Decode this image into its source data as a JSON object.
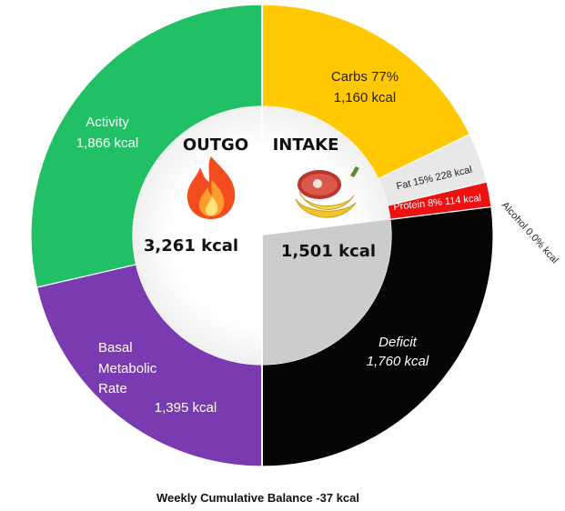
{
  "chart_data": {
    "type": "pie",
    "style": "donut",
    "outgo": {
      "title": "OUTGO",
      "total_label": "3,261 kcal",
      "icon": "fire-icon",
      "segments": [
        {
          "name": "Activity",
          "value_label": "1,866 kcal",
          "value": 1866,
          "color": "#22c064"
        },
        {
          "name": "Basal\nMetabolic\nRate",
          "value_label": "1,395 kcal",
          "value": 1395,
          "color": "#7a3bb0"
        }
      ]
    },
    "intake": {
      "title": "INTAKE",
      "total_label": "1,501 kcal",
      "icon": "food-icon",
      "segments": [
        {
          "name": "Carbs 77%",
          "value_label": "1,160 kcal",
          "value": 1160,
          "color": "#ffc800"
        },
        {
          "name": "Fat 15% 228 kcal",
          "value_label": "",
          "value": 228,
          "color": "#e8e8e8"
        },
        {
          "name": "Protein 8% 114 kcal",
          "value_label": "",
          "value": 114,
          "color": "#ee1111"
        },
        {
          "name": "Alcohol 0.0%  kcal",
          "value_label": "",
          "value": 0,
          "color": "#000000"
        },
        {
          "name": "Deficit",
          "value_label": "1,760 kcal",
          "value": 1760,
          "color": "#050505"
        }
      ]
    },
    "footer": "Weekly Cumulative Balance -37 kcal"
  }
}
